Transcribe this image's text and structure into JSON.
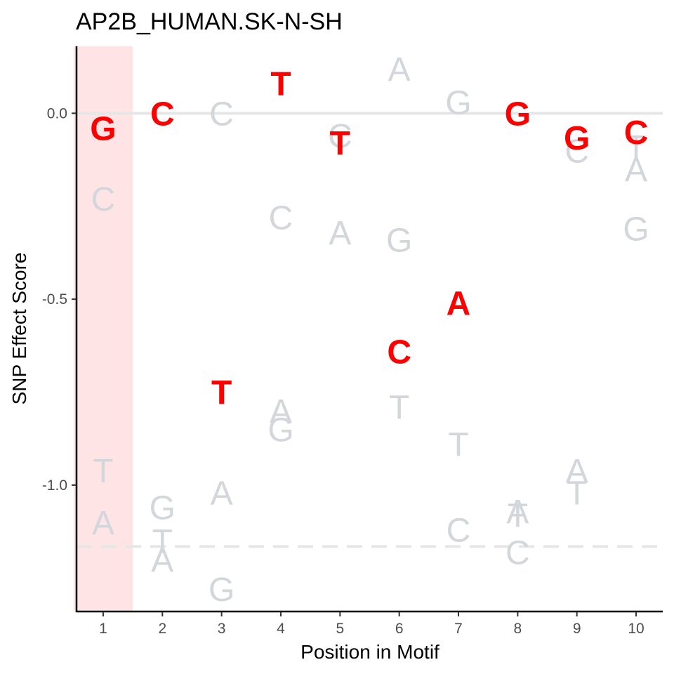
{
  "chart_data": {
    "type": "scatter",
    "title": "AP2B_HUMAN.SK-N-SH",
    "xlabel": "Position in Motif",
    "ylabel": "SNP Effect Score",
    "x_ticks": [
      "1",
      "2",
      "3",
      "4",
      "5",
      "6",
      "7",
      "8",
      "9",
      "10"
    ],
    "y_ticks": [
      {
        "value": 0.0,
        "label": "0.0"
      },
      {
        "value": -0.5,
        "label": "-0.5"
      },
      {
        "value": -1.0,
        "label": "-1.0"
      }
    ],
    "xlim": [
      0.55,
      10.45
    ],
    "ylim": [
      -1.34,
      0.18
    ],
    "highlight_position": 1,
    "reference_line": 0.0,
    "threshold_line": -1.165,
    "colors": {
      "reference": "#ff0000",
      "alternative": "#d3d6da",
      "highlight": "#ffe4e6",
      "reference_line": "#e6e6e6",
      "threshold_line": "#e6e6e6"
    },
    "reference_letters": [
      {
        "x": 1,
        "y": -0.04,
        "letter": "G"
      },
      {
        "x": 2,
        "y": 0.0,
        "letter": "C"
      },
      {
        "x": 3,
        "y": -0.75,
        "letter": "T"
      },
      {
        "x": 4,
        "y": 0.08,
        "letter": "T"
      },
      {
        "x": 5,
        "y": -0.08,
        "letter": "T"
      },
      {
        "x": 6,
        "y": -0.64,
        "letter": "C"
      },
      {
        "x": 7,
        "y": -0.51,
        "letter": "A"
      },
      {
        "x": 8,
        "y": 0.0,
        "letter": "G"
      },
      {
        "x": 9,
        "y": -0.065,
        "letter": "G"
      },
      {
        "x": 10,
        "y": -0.05,
        "letter": "C"
      }
    ],
    "alternative_letters": [
      {
        "x": 1,
        "y": -0.23,
        "letter": "C"
      },
      {
        "x": 1,
        "y": -0.96,
        "letter": "T"
      },
      {
        "x": 1,
        "y": -1.1,
        "letter": "A"
      },
      {
        "x": 2,
        "y": -1.06,
        "letter": "G"
      },
      {
        "x": 2,
        "y": -1.15,
        "letter": "T"
      },
      {
        "x": 2,
        "y": -1.2,
        "letter": "A"
      },
      {
        "x": 3,
        "y": 0.0,
        "letter": "C"
      },
      {
        "x": 3,
        "y": -1.02,
        "letter": "A"
      },
      {
        "x": 3,
        "y": -1.28,
        "letter": "G"
      },
      {
        "x": 4,
        "y": -0.28,
        "letter": "C"
      },
      {
        "x": 4,
        "y": -0.8,
        "letter": "A"
      },
      {
        "x": 4,
        "y": -0.85,
        "letter": "G"
      },
      {
        "x": 5,
        "y": -0.06,
        "letter": "C"
      },
      {
        "x": 5,
        "y": -0.32,
        "letter": "A"
      },
      {
        "x": 6,
        "y": 0.12,
        "letter": "A"
      },
      {
        "x": 6,
        "y": -0.34,
        "letter": "G"
      },
      {
        "x": 6,
        "y": -0.79,
        "letter": "T"
      },
      {
        "x": 7,
        "y": 0.03,
        "letter": "G"
      },
      {
        "x": 7,
        "y": -0.89,
        "letter": "T"
      },
      {
        "x": 7,
        "y": -1.12,
        "letter": "C"
      },
      {
        "x": 8,
        "y": -1.07,
        "letter": "A"
      },
      {
        "x": 8,
        "y": -1.08,
        "letter": "T"
      },
      {
        "x": 8,
        "y": -1.18,
        "letter": "C"
      },
      {
        "x": 9,
        "y": -0.1,
        "letter": "C"
      },
      {
        "x": 9,
        "y": -0.96,
        "letter": "A"
      },
      {
        "x": 9,
        "y": -1.02,
        "letter": "T"
      },
      {
        "x": 10,
        "y": -0.09,
        "letter": "T"
      },
      {
        "x": 10,
        "y": -0.15,
        "letter": "A"
      },
      {
        "x": 10,
        "y": -0.31,
        "letter": "G"
      }
    ]
  }
}
